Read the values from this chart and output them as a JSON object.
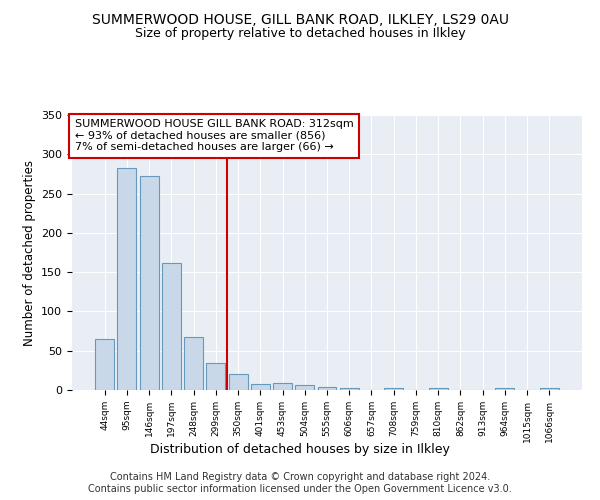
{
  "title": "SUMMERWOOD HOUSE, GILL BANK ROAD, ILKLEY, LS29 0AU",
  "subtitle": "Size of property relative to detached houses in Ilkley",
  "xlabel": "Distribution of detached houses by size in Ilkley",
  "ylabel": "Number of detached properties",
  "bar_labels": [
    "44sqm",
    "95sqm",
    "146sqm",
    "197sqm",
    "248sqm",
    "299sqm",
    "350sqm",
    "401sqm",
    "453sqm",
    "504sqm",
    "555sqm",
    "606sqm",
    "657sqm",
    "708sqm",
    "759sqm",
    "810sqm",
    "862sqm",
    "913sqm",
    "964sqm",
    "1015sqm",
    "1066sqm"
  ],
  "bar_values": [
    65,
    283,
    272,
    162,
    67,
    35,
    20,
    8,
    9,
    6,
    4,
    3,
    0,
    3,
    0,
    3,
    0,
    0,
    3,
    0,
    3
  ],
  "bar_color": "#c8d8e8",
  "bar_edge_color": "#6699bb",
  "ylim": [
    0,
    350
  ],
  "yticks": [
    0,
    50,
    100,
    150,
    200,
    250,
    300,
    350
  ],
  "red_line_x": 5.5,
  "red_line_color": "#cc0000",
  "annotation_text": "SUMMERWOOD HOUSE GILL BANK ROAD: 312sqm\n← 93% of detached houses are smaller (856)\n7% of semi-detached houses are larger (66) →",
  "annotation_box_edge": "#cc0000",
  "bg_color": "#e8eef4",
  "footer_text": "Contains HM Land Registry data © Crown copyright and database right 2024.\nContains public sector information licensed under the Open Government Licence v3.0.",
  "title_fontsize": 10,
  "subtitle_fontsize": 9,
  "xlabel_fontsize": 9,
  "ylabel_fontsize": 8.5,
  "annotation_fontsize": 8,
  "footer_fontsize": 7
}
